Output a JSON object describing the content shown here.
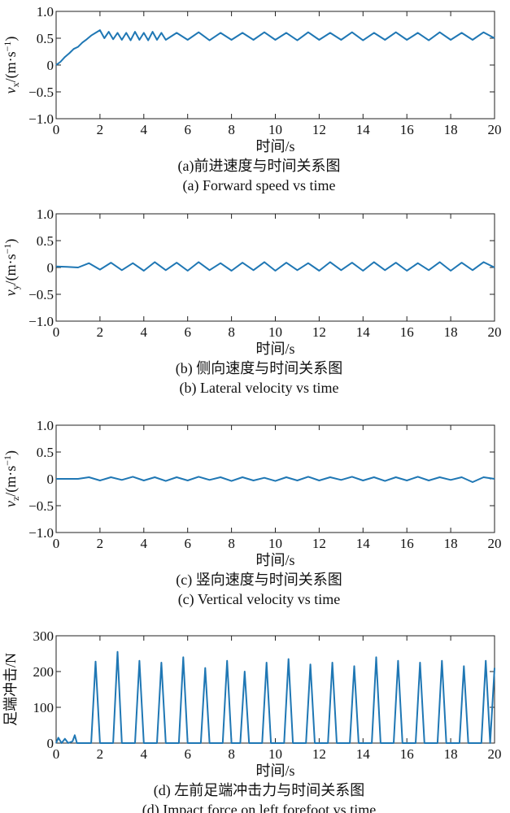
{
  "chart_data": [
    {
      "type": "line",
      "xlabel": "时间/s",
      "ylabel": "v_x/(m·s⁻¹)",
      "ylabel_var": "v",
      "ylabel_sub": "x",
      "ylabel_unit": "/(m·s",
      "ylabel_sup": "−1",
      "ylabel_close": ")",
      "caption_cn": "(a)前进速度与时间关系图",
      "caption_en": "(a) Forward speed vs time",
      "xlim": [
        0,
        20
      ],
      "ylim": [
        -1.0,
        1.0
      ],
      "xticks": [
        "0",
        "2",
        "4",
        "6",
        "8",
        "10",
        "12",
        "14",
        "16",
        "18",
        "20"
      ],
      "yticks": [
        "1.0",
        "0.5",
        "0",
        "−0.5",
        "−1.0"
      ],
      "yticks_values": [
        1.0,
        0.5,
        0,
        -0.5,
        -1.0
      ],
      "grid": false,
      "series": [
        {
          "color": "#1f77b4",
          "x": [
            0,
            0.2,
            0.4,
            0.6,
            0.8,
            1.0,
            1.2,
            1.4,
            1.6,
            1.8,
            2.0,
            2.2,
            2.4,
            2.6,
            2.8,
            3.0,
            3.2,
            3.4,
            3.6,
            3.8,
            4.0,
            4.2,
            4.4,
            4.6,
            4.8,
            5.0,
            5.5,
            6.0,
            6.5,
            7.0,
            7.5,
            8.0,
            8.5,
            9.0,
            9.5,
            10.0,
            10.5,
            11.0,
            11.5,
            12.0,
            12.5,
            13.0,
            13.5,
            14.0,
            14.5,
            15.0,
            15.5,
            16.0,
            16.5,
            17.0,
            17.5,
            18.0,
            18.5,
            19.0,
            19.5,
            20.0
          ],
          "values": [
            0.0,
            0.06,
            0.15,
            0.22,
            0.3,
            0.34,
            0.42,
            0.48,
            0.55,
            0.6,
            0.65,
            0.5,
            0.62,
            0.48,
            0.6,
            0.47,
            0.6,
            0.46,
            0.62,
            0.47,
            0.6,
            0.46,
            0.62,
            0.47,
            0.6,
            0.47,
            0.6,
            0.47,
            0.61,
            0.46,
            0.6,
            0.47,
            0.6,
            0.47,
            0.61,
            0.47,
            0.6,
            0.46,
            0.61,
            0.47,
            0.6,
            0.47,
            0.61,
            0.46,
            0.6,
            0.47,
            0.61,
            0.47,
            0.6,
            0.46,
            0.61,
            0.47,
            0.6,
            0.47,
            0.61,
            0.5
          ]
        }
      ]
    },
    {
      "type": "line",
      "xlabel": "时间/s",
      "ylabel": "v_y/(m·s⁻¹)",
      "ylabel_var": "v",
      "ylabel_sub": "y",
      "ylabel_unit": "/(m·s",
      "ylabel_sup": "−1",
      "ylabel_close": ")",
      "caption_cn": "(b) 侧向速度与时间关系图",
      "caption_en": "(b) Lateral velocity vs time",
      "xlim": [
        0,
        20
      ],
      "ylim": [
        -1.0,
        1.0
      ],
      "xticks": [
        "0",
        "2",
        "4",
        "6",
        "8",
        "10",
        "12",
        "14",
        "16",
        "18",
        "20"
      ],
      "yticks": [
        "1.0",
        "0.5",
        "0",
        "−0.5",
        "−1.0"
      ],
      "yticks_values": [
        1.0,
        0.5,
        0,
        -0.5,
        -1.0
      ],
      "grid": false,
      "series": [
        {
          "color": "#1f77b4",
          "x": [
            0,
            0.5,
            1.0,
            1.5,
            2.0,
            2.5,
            3.0,
            3.5,
            4.0,
            4.5,
            5.0,
            5.5,
            6.0,
            6.5,
            7.0,
            7.5,
            8.0,
            8.5,
            9.0,
            9.5,
            10.0,
            10.5,
            11.0,
            11.5,
            12.0,
            12.5,
            13.0,
            13.5,
            14.0,
            14.5,
            15.0,
            15.5,
            16.0,
            16.5,
            17.0,
            17.5,
            18.0,
            18.5,
            19.0,
            19.5,
            20.0
          ],
          "values": [
            0.02,
            0.01,
            0.0,
            0.08,
            -0.04,
            0.09,
            -0.05,
            0.08,
            -0.06,
            0.1,
            -0.05,
            0.09,
            -0.06,
            0.1,
            -0.05,
            0.08,
            -0.06,
            0.09,
            -0.05,
            0.1,
            -0.06,
            0.09,
            -0.05,
            0.08,
            -0.06,
            0.1,
            -0.05,
            0.09,
            -0.06,
            0.1,
            -0.05,
            0.09,
            -0.06,
            0.08,
            -0.05,
            0.1,
            -0.06,
            0.09,
            -0.05,
            0.1,
            0.0
          ]
        }
      ]
    },
    {
      "type": "line",
      "xlabel": "时间/s",
      "ylabel": "v_z/(m·s⁻¹)",
      "ylabel_var": "v",
      "ylabel_sub": "z",
      "ylabel_unit": "/(m·s",
      "ylabel_sup": "−1",
      "ylabel_close": ")",
      "caption_cn": "(c) 竖向速度与时间关系图",
      "caption_en": "(c) Vertical velocity vs time",
      "xlim": [
        0,
        20
      ],
      "ylim": [
        -1.0,
        1.0
      ],
      "xticks": [
        "0",
        "2",
        "4",
        "6",
        "8",
        "10",
        "12",
        "14",
        "16",
        "18",
        "20"
      ],
      "yticks": [
        "1.0",
        "0.5",
        "0",
        "−0.5",
        "−1.0"
      ],
      "yticks_values": [
        1.0,
        0.5,
        0,
        -0.5,
        -1.0
      ],
      "grid": false,
      "series": [
        {
          "color": "#1f77b4",
          "x": [
            0,
            1.0,
            1.5,
            2.0,
            2.5,
            3.0,
            3.5,
            4.0,
            4.5,
            5.0,
            5.5,
            6.0,
            6.5,
            7.0,
            7.5,
            8.0,
            8.5,
            9.0,
            9.5,
            10.0,
            10.5,
            11.0,
            11.5,
            12.0,
            12.5,
            13.0,
            13.5,
            14.0,
            14.5,
            15.0,
            15.5,
            16.0,
            16.5,
            17.0,
            17.5,
            18.0,
            18.5,
            19.0,
            19.5,
            20.0
          ],
          "values": [
            0.0,
            0.0,
            0.03,
            -0.03,
            0.03,
            -0.02,
            0.04,
            -0.03,
            0.03,
            -0.04,
            0.03,
            -0.03,
            0.04,
            -0.02,
            0.03,
            -0.04,
            0.03,
            -0.03,
            0.02,
            -0.04,
            0.03,
            -0.03,
            0.04,
            -0.03,
            0.03,
            -0.02,
            0.04,
            -0.03,
            0.03,
            -0.04,
            0.03,
            -0.03,
            0.04,
            -0.03,
            0.03,
            -0.02,
            0.03,
            -0.06,
            0.03,
            0.0
          ]
        }
      ]
    },
    {
      "type": "line",
      "xlabel": "时间/s",
      "ylabel": "足端冲击/N",
      "caption_cn": "(d) 左前足端冲击力与时间关系图",
      "caption_en": "(d) Impact force on left forefoot vs time",
      "xlim": [
        0,
        20
      ],
      "ylim": [
        0,
        300
      ],
      "xticks": [
        "0",
        "2",
        "4",
        "6",
        "8",
        "10",
        "12",
        "14",
        "16",
        "18",
        "20"
      ],
      "yticks": [
        "300",
        "200",
        "100",
        "0"
      ],
      "yticks_values": [
        300,
        200,
        100,
        0
      ],
      "grid": false,
      "series": [
        {
          "color": "#1f77b4",
          "x": [
            0,
            0.1,
            0.25,
            0.4,
            0.55,
            0.75,
            0.85,
            0.95,
            1.6,
            1.8,
            2.0,
            2.6,
            2.8,
            3.0,
            3.6,
            3.8,
            4.0,
            4.6,
            4.8,
            5.0,
            5.6,
            5.8,
            6.0,
            6.6,
            6.8,
            7.0,
            7.6,
            7.8,
            8.0,
            8.4,
            8.6,
            8.8,
            9.4,
            9.6,
            9.8,
            10.4,
            10.6,
            10.8,
            11.4,
            11.6,
            11.8,
            12.4,
            12.6,
            12.8,
            13.4,
            13.6,
            13.8,
            14.4,
            14.6,
            14.8,
            15.4,
            15.6,
            15.8,
            16.4,
            16.6,
            16.8,
            17.4,
            17.6,
            17.8,
            18.4,
            18.6,
            18.8,
            19.4,
            19.6,
            19.8,
            20.0
          ],
          "values": [
            0,
            15,
            0,
            12,
            0,
            5,
            22,
            0,
            0,
            228,
            0,
            0,
            255,
            0,
            0,
            230,
            0,
            0,
            225,
            0,
            0,
            240,
            0,
            0,
            210,
            0,
            0,
            230,
            0,
            0,
            200,
            0,
            0,
            225,
            0,
            0,
            235,
            0,
            0,
            220,
            0,
            0,
            225,
            0,
            0,
            215,
            0,
            0,
            240,
            0,
            0,
            230,
            0,
            0,
            225,
            0,
            0,
            230,
            0,
            0,
            215,
            0,
            0,
            230,
            0,
            210
          ]
        }
      ]
    }
  ]
}
